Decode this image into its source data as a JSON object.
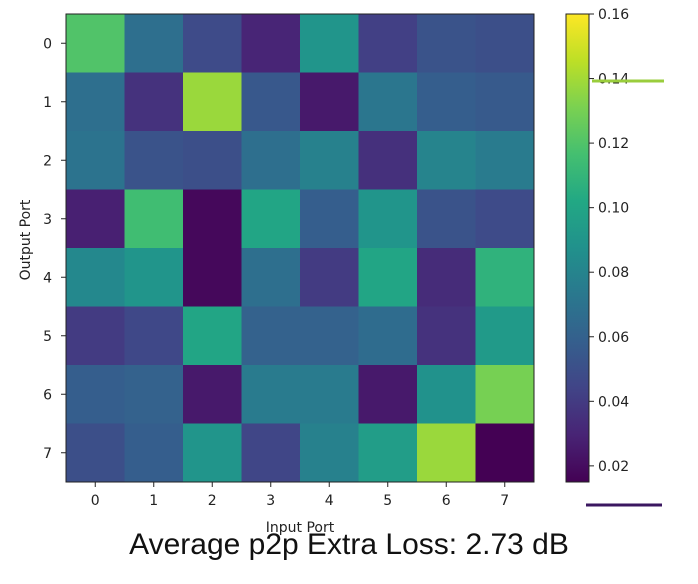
{
  "chart_data": {
    "type": "heatmap",
    "xlabel": "Input Port",
    "ylabel": "Output Port",
    "x_categories": [
      "0",
      "1",
      "2",
      "3",
      "4",
      "5",
      "6",
      "7"
    ],
    "y_categories": [
      "0",
      "1",
      "2",
      "3",
      "4",
      "5",
      "6",
      "7"
    ],
    "values": [
      [
        0.12,
        0.068,
        0.048,
        0.03,
        0.09,
        0.042,
        0.052,
        0.05
      ],
      [
        0.068,
        0.036,
        0.138,
        0.055,
        0.025,
        0.072,
        0.058,
        0.056
      ],
      [
        0.07,
        0.052,
        0.05,
        0.068,
        0.078,
        0.035,
        0.08,
        0.075
      ],
      [
        0.028,
        0.115,
        0.018,
        0.1,
        0.058,
        0.09,
        0.052,
        0.048
      ],
      [
        0.082,
        0.09,
        0.018,
        0.068,
        0.04,
        0.1,
        0.033,
        0.108
      ],
      [
        0.04,
        0.046,
        0.1,
        0.06,
        0.06,
        0.066,
        0.036,
        0.093
      ],
      [
        0.058,
        0.06,
        0.025,
        0.075,
        0.075,
        0.025,
        0.088,
        0.13
      ],
      [
        0.05,
        0.058,
        0.09,
        0.045,
        0.078,
        0.095,
        0.138,
        0.015
      ]
    ],
    "colorbar": {
      "range": [
        0.015,
        0.16
      ],
      "ticks": [
        "0.02",
        "0.04",
        "0.06",
        "0.08",
        "0.10",
        "0.12",
        "0.14",
        "0.16"
      ],
      "colormap": "viridis"
    }
  },
  "caption": "Average p2p Extra Loss: 2.73 dB",
  "colors": {
    "annotation_top_line": "#9acd3c",
    "annotation_bottom_line": "#3b1760"
  }
}
